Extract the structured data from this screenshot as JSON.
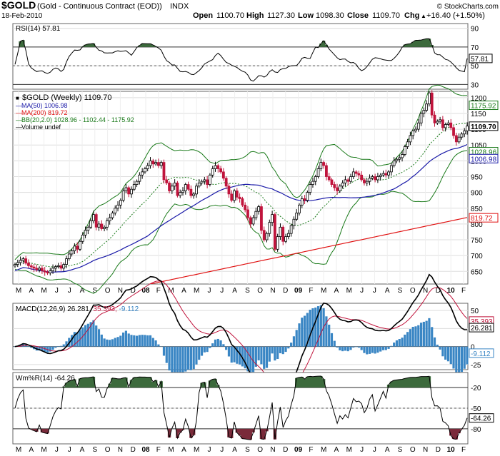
{
  "header": {
    "symbol": "$GOLD",
    "name": "(Gold - Continuous Contract (EOD))",
    "exchange": "INDX",
    "date": "18-Feb-2010",
    "open_label": "Open",
    "open": "1100.70",
    "high_label": "High",
    "high": "1127.30",
    "low_label": "Low",
    "low": "1098.30",
    "close_label": "Close",
    "close": "1109.70",
    "chg_label": "Chg",
    "chg": "+16.40 (+1.50%)",
    "chg_arrow": "▲",
    "copyright": "© StockCharts.com"
  },
  "colors": {
    "up": "#000000",
    "down": "#c0143c",
    "ma50": "#1a1aa8",
    "ma200": "#e01010",
    "bb": "#1a7a1a",
    "hist": "#3a86c4",
    "shade": "#3c6a3c",
    "wmshade_low": "#7a2a3a"
  },
  "chart_data": [
    {
      "type": "line",
      "panel": "RSI",
      "title": "RSI(14) 57.81",
      "value": 57.81,
      "ylim": [
        25,
        95
      ],
      "yticks": [
        "90",
        "70",
        "50",
        "30"
      ],
      "levels": [
        70,
        30
      ],
      "value_label": "57.81"
    },
    {
      "type": "candlestick",
      "panel": "price",
      "title": "$GOLD (Weekly) 1109.70",
      "ylim": [
        610,
        1220
      ],
      "yticks": [
        "1200",
        "1150",
        "1100",
        "1050",
        "1000",
        "950",
        "900",
        "850",
        "800",
        "750",
        "700",
        "650"
      ],
      "x_labels": [
        "M",
        "A",
        "M",
        "J",
        "J",
        "A",
        "S",
        "O",
        "N",
        "D",
        "08",
        "F",
        "M",
        "A",
        "M",
        "J",
        "J",
        "A",
        "S",
        "O",
        "N",
        "D",
        "09",
        "F",
        "M",
        "A",
        "M",
        "J",
        "J",
        "A",
        "S",
        "O",
        "N",
        "D",
        "10",
        "F"
      ],
      "legend": [
        {
          "label": "MA(50) 1006.98",
          "color": "ma50"
        },
        {
          "label": "MA(200) 819.72",
          "color": "ma200"
        },
        {
          "label": "BB(20,2.0) 1028.96 - 1102.44 - 1175.92",
          "color": "bb"
        },
        {
          "label": "Volume undef",
          "color": "up"
        }
      ],
      "right_labels": [
        {
          "text": "1175.92",
          "value": 1175.92,
          "color": "bb"
        },
        {
          "text": "1109.70",
          "value": 1109.7,
          "color": "up"
        },
        {
          "text": "1028.96",
          "value": 1028.96,
          "color": "bb"
        },
        {
          "text": "1006.98",
          "value": 1006.98,
          "color": "ma50"
        },
        {
          "text": "819.72",
          "value": 819.72,
          "color": "ma200"
        }
      ],
      "closes": [
        672,
        678,
        685,
        690,
        676,
        668,
        664,
        660,
        655,
        660,
        652,
        648,
        645,
        652,
        660,
        665,
        668,
        660,
        672,
        690,
        705,
        715,
        730,
        720,
        745,
        765,
        780,
        790,
        810,
        830,
        790,
        800,
        785,
        790,
        810,
        820,
        835,
        850,
        860,
        875,
        905,
        915,
        895,
        910,
        925,
        935,
        955,
        965,
        975,
        985,
        1000,
        990,
        995,
        985,
        995,
        940,
        930,
        905,
        920,
        930,
        890,
        900,
        905,
        925,
        910,
        890,
        895,
        920,
        930,
        935,
        940,
        925,
        955,
        975,
        985,
        975,
        965,
        945,
        920,
        895,
        875,
        905,
        885,
        880,
        860,
        845,
        820,
        800,
        820,
        840,
        855,
        780,
        750,
        770,
        805,
        830,
        720,
        760,
        790,
        745,
        760,
        770,
        795,
        815,
        835,
        860,
        880,
        875,
        900,
        925,
        935,
        950,
        975,
        995,
        985,
        950,
        940,
        925,
        915,
        905,
        920,
        930,
        940,
        935,
        950,
        965,
        960,
        955,
        940,
        930,
        935,
        945,
        950,
        940,
        950,
        955,
        960,
        955,
        965,
        985,
        1000,
        1005,
        1010,
        1020,
        1045,
        1060,
        1080,
        1095,
        1100,
        1120,
        1150,
        1160,
        1180,
        1215,
        1145,
        1120,
        1125,
        1130,
        1105,
        1115,
        1120,
        1105,
        1080,
        1060,
        1075,
        1085,
        1095,
        1110
      ],
      "final_close": 1109.7
    },
    {
      "type": "line",
      "panel": "MACD",
      "title": "MACD(12,26,9) 26.281, 35.393, -9.112",
      "macd_label": "MACD(12,26,9)",
      "macd_value": "26.281",
      "signal_value": "35.393",
      "hist_value": "-9.112",
      "ylim": [
        -32,
        60
      ],
      "yticks": [
        "50",
        "25",
        "0",
        "-25"
      ],
      "right_labels": [
        {
          "text": "35.393",
          "value": 35.393,
          "color": "down"
        },
        {
          "text": "26.281",
          "value": 26.281,
          "color": "up"
        },
        {
          "text": "-9.112",
          "value": -9.112,
          "color": "hist"
        }
      ]
    },
    {
      "type": "line",
      "panel": "WmR",
      "title": "Wm%R(14) -64.26",
      "value": -64.26,
      "ylim": [
        -102,
        2
      ],
      "yticks": [
        "-20",
        "-50",
        "-80"
      ],
      "levels": [
        -20,
        -80
      ],
      "value_label": "-64.26"
    }
  ]
}
